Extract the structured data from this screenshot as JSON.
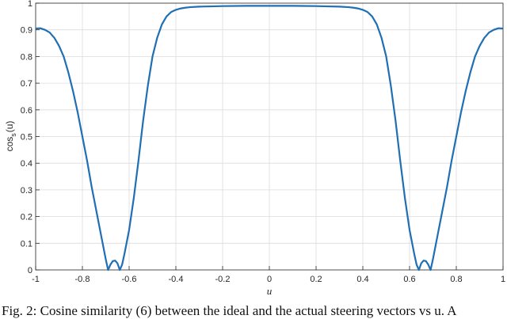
{
  "caption": "Fig. 2: Cosine similarity (6) between the ideal and the actual steering vectors vs u. A",
  "chart_data": {
    "type": "line",
    "xlabel": "u",
    "ylabel_main": "cos",
    "ylabel_sub": "s",
    "ylabel_arg": "(u)",
    "xlim": [
      -1,
      1
    ],
    "ylim": [
      0,
      1
    ],
    "grid": true,
    "x_ticks": [
      -1,
      -0.8,
      -0.6,
      -0.4,
      -0.2,
      0,
      0.2,
      0.4,
      0.6,
      0.8,
      1
    ],
    "x_tick_labels": [
      "-1",
      "-0.8",
      "-0.6",
      "-0.4",
      "-0.2",
      "0",
      "0.2",
      "0.4",
      "0.6",
      "0.8",
      "1"
    ],
    "y_ticks": [
      0,
      0.1,
      0.2,
      0.3,
      0.4,
      0.5,
      0.6,
      0.7,
      0.8,
      0.9,
      1
    ],
    "y_tick_labels": [
      "0",
      "0.1",
      "0.2",
      "0.3",
      "0.4",
      "0.5",
      "0.6",
      "0.7",
      "0.8",
      "0.9",
      "1"
    ],
    "line_color": "#1f6fb4",
    "series": [
      {
        "x": [
          -1.0,
          -0.98,
          -0.96,
          -0.94,
          -0.92,
          -0.9,
          -0.88,
          -0.86,
          -0.84,
          -0.82,
          -0.8,
          -0.78,
          -0.76,
          -0.74,
          -0.72,
          -0.7,
          -0.69,
          -0.68,
          -0.67,
          -0.66,
          -0.65,
          -0.64,
          -0.63,
          -0.62,
          -0.6,
          -0.58,
          -0.56,
          -0.54,
          -0.52,
          -0.5,
          -0.48,
          -0.46,
          -0.44,
          -0.42,
          -0.4,
          -0.38,
          -0.36,
          -0.34,
          -0.3,
          -0.25,
          -0.2,
          -0.1,
          0.0,
          0.1,
          0.2,
          0.25,
          0.3,
          0.34,
          0.36,
          0.38,
          0.4,
          0.42,
          0.44,
          0.46,
          0.48,
          0.5,
          0.52,
          0.54,
          0.56,
          0.58,
          0.6,
          0.62,
          0.63,
          0.64,
          0.65,
          0.66,
          0.67,
          0.68,
          0.69,
          0.7,
          0.72,
          0.74,
          0.76,
          0.78,
          0.8,
          0.82,
          0.84,
          0.86,
          0.88,
          0.9,
          0.92,
          0.94,
          0.96,
          0.98,
          1.0
        ],
        "y": [
          0.905,
          0.906,
          0.9,
          0.89,
          0.87,
          0.84,
          0.8,
          0.74,
          0.67,
          0.59,
          0.5,
          0.41,
          0.31,
          0.22,
          0.13,
          0.04,
          0.0,
          0.02,
          0.033,
          0.035,
          0.025,
          0.0,
          0.02,
          0.06,
          0.15,
          0.27,
          0.41,
          0.56,
          0.69,
          0.8,
          0.87,
          0.92,
          0.95,
          0.967,
          0.975,
          0.98,
          0.983,
          0.985,
          0.987,
          0.988,
          0.989,
          0.99,
          0.99,
          0.99,
          0.989,
          0.988,
          0.987,
          0.985,
          0.983,
          0.98,
          0.975,
          0.967,
          0.95,
          0.92,
          0.87,
          0.8,
          0.69,
          0.56,
          0.41,
          0.27,
          0.15,
          0.06,
          0.02,
          0.0,
          0.025,
          0.035,
          0.033,
          0.02,
          0.0,
          0.04,
          0.13,
          0.22,
          0.31,
          0.41,
          0.5,
          0.59,
          0.67,
          0.74,
          0.8,
          0.84,
          0.87,
          0.89,
          0.9,
          0.906,
          0.905
        ]
      }
    ]
  }
}
